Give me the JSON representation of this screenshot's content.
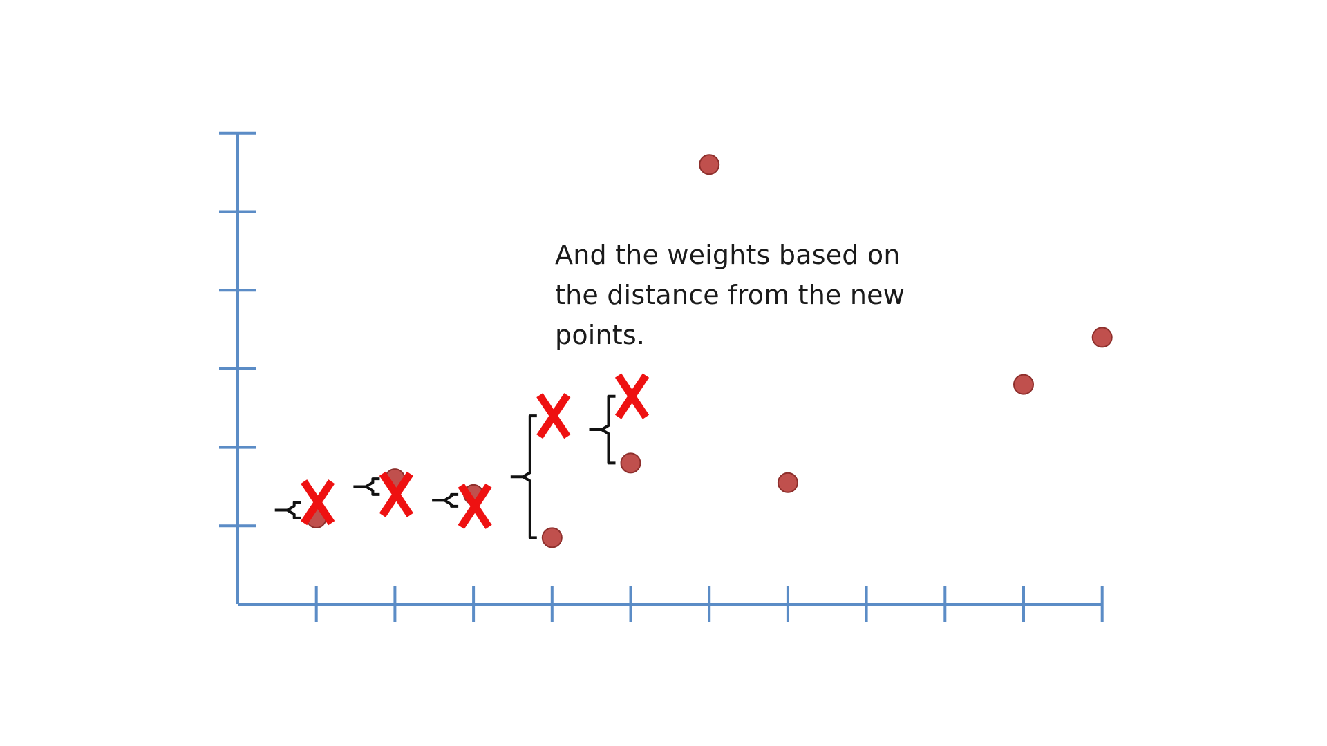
{
  "caption": {
    "line1": "And the weights based on",
    "line2": "the distance from the new",
    "line3": "points."
  },
  "colors": {
    "axis": "#5b8cc6",
    "point_fill": "#c0504d",
    "point_stroke": "#8e2f2c",
    "new_point": "#ee1111",
    "bracket": "#111111"
  },
  "chart_data": {
    "type": "scatter",
    "title": "",
    "xlabel": "",
    "ylabel": "",
    "xlim": [
      0,
      11
    ],
    "ylim": [
      0,
      6
    ],
    "x_ticks": [
      1,
      2,
      3,
      4,
      5,
      6,
      7,
      8,
      9,
      10,
      11
    ],
    "y_ticks": [
      1,
      2,
      3,
      4,
      5,
      6
    ],
    "series": [
      {
        "marker": "circle",
        "points": [
          {
            "x": 1,
            "y": 1.1
          },
          {
            "x": 2,
            "y": 1.6
          },
          {
            "x": 3,
            "y": 1.4
          },
          {
            "x": 4,
            "y": 0.85
          },
          {
            "x": 5,
            "y": 1.8
          },
          {
            "x": 6,
            "y": 5.6
          },
          {
            "x": 7,
            "y": 1.55
          },
          {
            "x": 10,
            "y": 2.8
          },
          {
            "x": 11,
            "y": 3.4
          }
        ]
      },
      {
        "marker": "X",
        "points": [
          {
            "x": 1,
            "y": 1.3
          },
          {
            "x": 2,
            "y": 1.4
          },
          {
            "x": 3,
            "y": 1.25
          },
          {
            "x": 4,
            "y": 2.4
          },
          {
            "x": 5,
            "y": 2.65
          }
        ]
      }
    ],
    "weight_brackets": [
      {
        "x": 1,
        "from": 1.1,
        "to": 1.3
      },
      {
        "x": 2,
        "from": 1.4,
        "to": 1.6
      },
      {
        "x": 3,
        "from": 1.25,
        "to": 1.4
      },
      {
        "x": 4,
        "from": 0.85,
        "to": 2.4
      },
      {
        "x": 5,
        "from": 1.8,
        "to": 2.65
      }
    ]
  }
}
